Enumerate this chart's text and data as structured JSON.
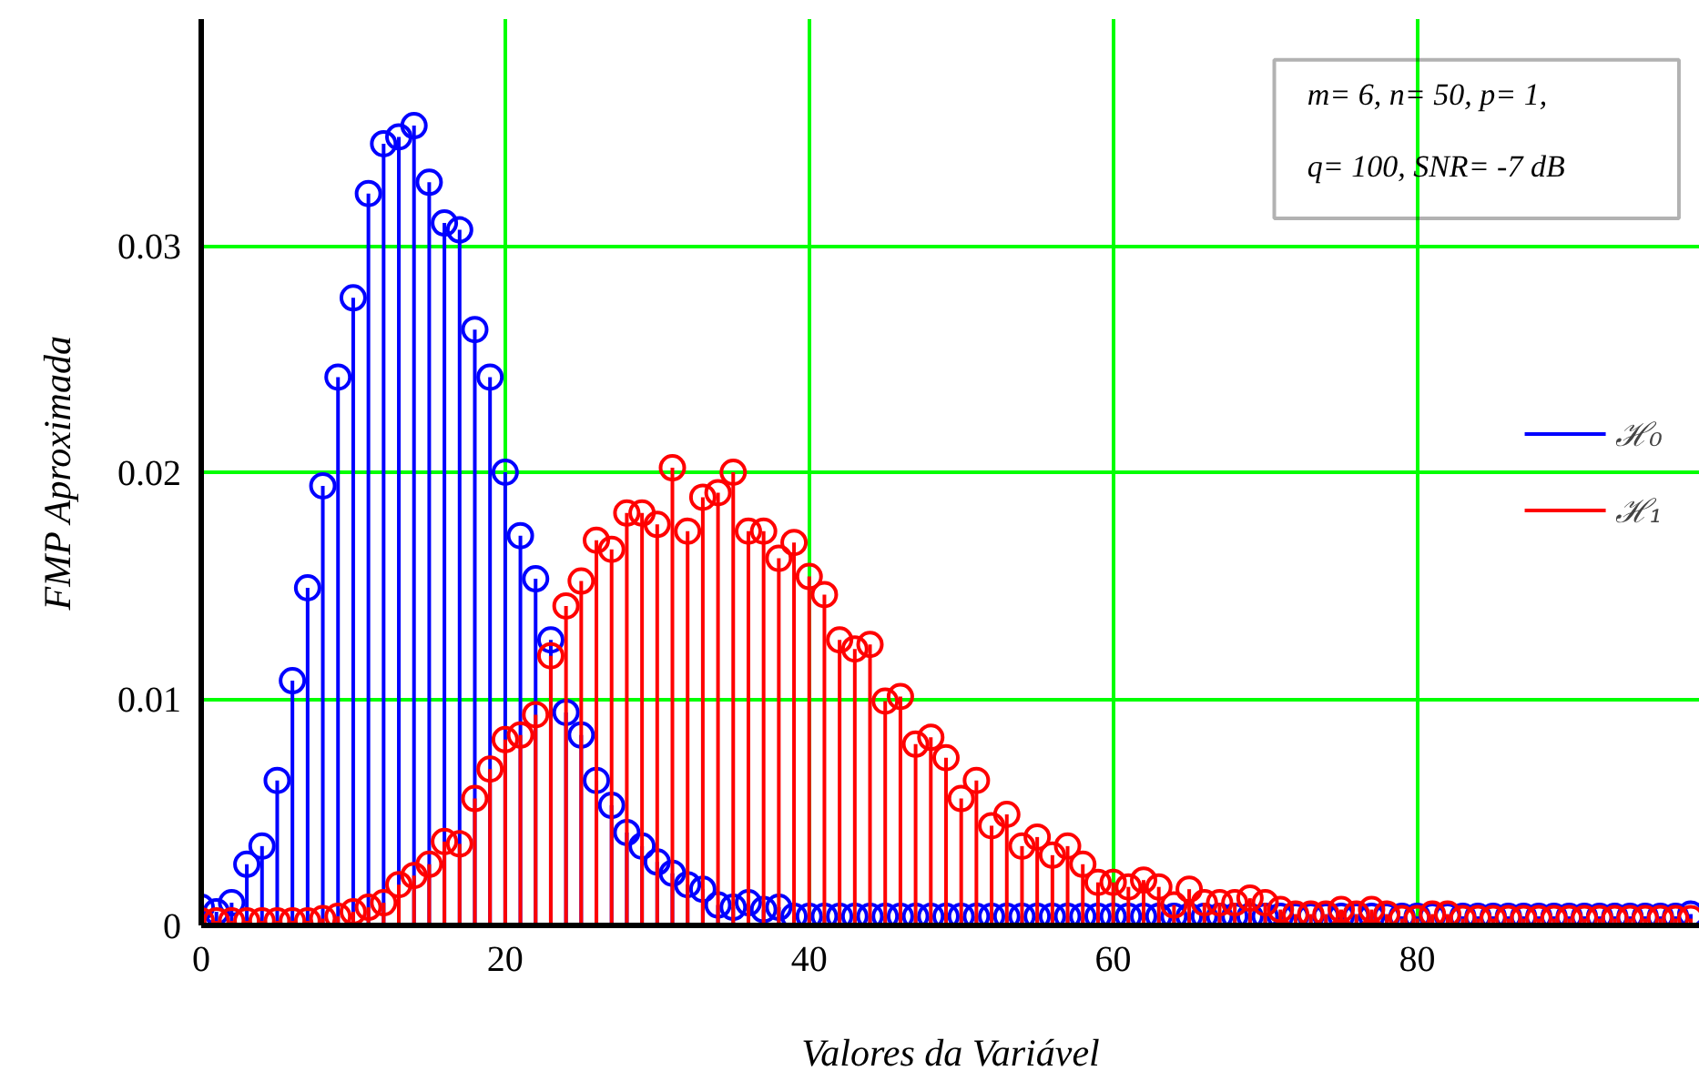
{
  "chart_data": {
    "type": "lollipop",
    "xlabel": "Valores da Variável",
    "ylabel": "FMP Aproximada",
    "annotations": [
      "m= 6, n= 50, p= 1,",
      "q= 100, SNR= -7 dB"
    ],
    "x": [
      0,
      1,
      2,
      3,
      4,
      5,
      6,
      7,
      8,
      9,
      10,
      11,
      12,
      13,
      14,
      15,
      16,
      17,
      18,
      19,
      20,
      21,
      22,
      23,
      24,
      25,
      26,
      27,
      28,
      29,
      30,
      31,
      32,
      33,
      34,
      35,
      36,
      37,
      38,
      39,
      40,
      41,
      42,
      43,
      44,
      45,
      46,
      47,
      48,
      49,
      50,
      51,
      52,
      53,
      54,
      55,
      56,
      57,
      58,
      59,
      60,
      61,
      62,
      63,
      64,
      65,
      66,
      67,
      68,
      69,
      70,
      71,
      72,
      73,
      74,
      75,
      76,
      77,
      78,
      79,
      80,
      81,
      82,
      83,
      84,
      85,
      86,
      87,
      88,
      89,
      90,
      91,
      92,
      93,
      94,
      95,
      96,
      97,
      98
    ],
    "series": [
      {
        "name": "ℋ₀",
        "color": "#0000ff",
        "values": [
          0.0008,
          0.0006,
          0.001,
          0.0027,
          0.0035,
          0.0064,
          0.0108,
          0.0149,
          0.0194,
          0.0242,
          0.0277,
          0.0323,
          0.0345,
          0.0348,
          0.0353,
          0.0328,
          0.031,
          0.0307,
          0.0263,
          0.0242,
          0.02,
          0.0172,
          0.0153,
          0.0126,
          0.0094,
          0.0084,
          0.0064,
          0.0053,
          0.0041,
          0.0035,
          0.0028,
          0.0023,
          0.0018,
          0.0016,
          0.0009,
          0.0008,
          0.001,
          0.0007,
          0.0008,
          0.0004,
          0.0004,
          0.0004,
          0.0004,
          0.0004,
          0.0004,
          0.0004,
          0.0004,
          0.0004,
          0.0004,
          0.0004,
          0.0004,
          0.0004,
          0.0004,
          0.0004,
          0.0004,
          0.0004,
          0.0004,
          0.0004,
          0.0004,
          0.0004,
          0.0004,
          0.0004,
          0.0004,
          0.0004,
          0.0004,
          0.0004,
          0.0004,
          0.0004,
          0.0004,
          0.0004,
          0.0004,
          0.0004,
          0.0004,
          0.0004,
          0.0004,
          0.0004,
          0.0004,
          0.0004,
          0.0004,
          0.0004,
          0.0004,
          0.0004,
          0.0004,
          0.0004,
          0.0004,
          0.0004,
          0.0004,
          0.0004,
          0.0004,
          0.0004,
          0.0004,
          0.0004,
          0.0004,
          0.0004,
          0.0004,
          0.0004,
          0.0004,
          0.0004,
          0.0005
        ]
      },
      {
        "name": "ℋ₁",
        "color": "#ff0000",
        "values": [
          0.0002,
          0.0002,
          0.0002,
          0.0002,
          0.0002,
          0.0002,
          0.0002,
          0.0002,
          0.0003,
          0.0004,
          0.0006,
          0.0008,
          0.001,
          0.0018,
          0.0022,
          0.0027,
          0.0037,
          0.0036,
          0.0056,
          0.0069,
          0.0082,
          0.0084,
          0.0093,
          0.0119,
          0.0141,
          0.0152,
          0.017,
          0.0166,
          0.0182,
          0.0182,
          0.0177,
          0.0202,
          0.0174,
          0.0189,
          0.0191,
          0.02,
          0.0174,
          0.0174,
          0.0162,
          0.0169,
          0.0154,
          0.0146,
          0.0126,
          0.0122,
          0.0124,
          0.0099,
          0.0101,
          0.008,
          0.0083,
          0.0074,
          0.0056,
          0.0064,
          0.0044,
          0.0049,
          0.0035,
          0.0039,
          0.0031,
          0.0035,
          0.0027,
          0.0019,
          0.0019,
          0.0017,
          0.002,
          0.0017,
          0.0009,
          0.0016,
          0.001,
          0.001,
          0.001,
          0.0012,
          0.001,
          0.0007,
          0.0005,
          0.0005,
          0.0005,
          0.0007,
          0.0005,
          0.0007,
          0.0005,
          0.0003,
          0.0003,
          0.0005,
          0.0005,
          0.0003,
          0.0003,
          0.0003,
          0.0003,
          0.0003,
          0.0003,
          0.0003,
          0.0003,
          0.0003,
          0.0003,
          0.0003,
          0.0003,
          0.0003,
          0.0003,
          0.0003,
          0.0003
        ]
      }
    ],
    "xlim": [
      0,
      98.6
    ],
    "ylim": [
      0,
      0.04
    ],
    "xticks": [
      0,
      20,
      40,
      60,
      80
    ],
    "yticks": [
      0,
      0.01,
      0.02,
      0.03
    ],
    "grid": true,
    "legend": "right",
    "marker": "circle"
  }
}
